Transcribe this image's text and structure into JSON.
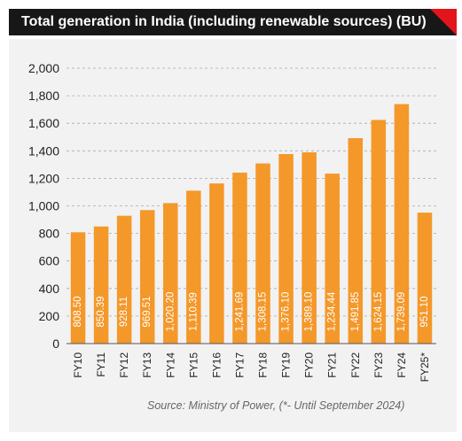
{
  "header": {
    "title": "Total generation in India (including renewable sources) (BU)"
  },
  "footer": {
    "source": "Source: Ministry of Power, (*- Until September 2024)"
  },
  "colors": {
    "bar": "#f4982a",
    "title_bg": "#171717",
    "accent": "#e2151b",
    "plot_bg": "#f2f2f2",
    "grid": "#aaaaaa"
  },
  "chart_data": {
    "type": "bar",
    "title": "Total generation in India (including renewable sources) (BU)",
    "xlabel": "",
    "ylabel": "",
    "ylim": [
      0,
      2000
    ],
    "yticks": [
      0,
      200,
      400,
      600,
      800,
      1000,
      1200,
      1400,
      1600,
      1800,
      2000
    ],
    "ytick_labels": [
      "0",
      "200",
      "400",
      "600",
      "800",
      "1,000",
      "1,200",
      "1,400",
      "1,600",
      "1,800",
      "2,000"
    ],
    "grid": "horizontal dashed",
    "categories": [
      "FY10",
      "FY11",
      "FY12",
      "FY13",
      "FY14",
      "FY15",
      "FY16",
      "FY17",
      "FY18",
      "FY19",
      "FY20",
      "FY21",
      "FY22",
      "FY23",
      "FY24",
      "FY25*"
    ],
    "values": [
      808.5,
      850.39,
      928.11,
      969.51,
      1020.2,
      1110.39,
      1163,
      1241.69,
      1308.15,
      1376.1,
      1389.1,
      1234.44,
      1491.85,
      1624.15,
      1739.09,
      951.1
    ],
    "data_labels": [
      "808.50",
      "850.39",
      "928.11",
      "969.51",
      "1,020.20",
      "1,110.39",
      "",
      "1,241.69",
      "1,308.15",
      "1,376.10",
      "1,389.10",
      "1,234.44",
      "1,491.85",
      "1,624.15",
      "1,739.09",
      "951.10"
    ]
  }
}
